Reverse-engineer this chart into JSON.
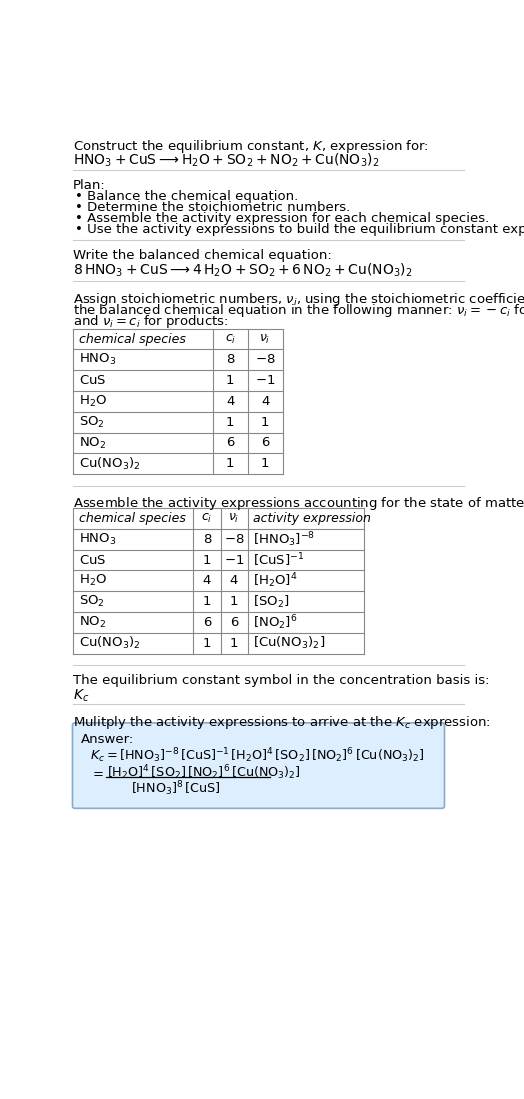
{
  "title_line1": "Construct the equilibrium constant, $K$, expression for:",
  "title_line2": "$\\mathrm{HNO_3 + CuS \\longrightarrow H_2O + SO_2 + NO_2 + Cu(NO_3)_2}$",
  "plan_header": "Plan:",
  "plan_items": [
    "• Balance the chemical equation.",
    "• Determine the stoichiometric numbers.",
    "• Assemble the activity expression for each chemical species.",
    "• Use the activity expressions to build the equilibrium constant expression."
  ],
  "balanced_header": "Write the balanced chemical equation:",
  "balanced_eq": "$\\mathrm{8\\,HNO_3 + CuS \\longrightarrow 4\\,H_2O + SO_2 + 6\\,NO_2 + Cu(NO_3)_2}$",
  "stoich_header_parts": [
    "Assign stoichiometric numbers, $\\nu_i$, using the stoichiometric coefficients, $c_i$, from",
    "the balanced chemical equation in the following manner: $\\nu_i = -c_i$ for reactants",
    "and $\\nu_i = c_i$ for products:"
  ],
  "table1_cols": [
    "chemical species",
    "$c_i$",
    "$\\nu_i$"
  ],
  "table1_rows": [
    [
      "$\\mathrm{HNO_3}$",
      "8",
      "$-8$"
    ],
    [
      "$\\mathrm{CuS}$",
      "1",
      "$-1$"
    ],
    [
      "$\\mathrm{H_2O}$",
      "4",
      "4"
    ],
    [
      "$\\mathrm{SO_2}$",
      "1",
      "1"
    ],
    [
      "$\\mathrm{NO_2}$",
      "6",
      "6"
    ],
    [
      "$\\mathrm{Cu(NO_3)_2}$",
      "1",
      "1"
    ]
  ],
  "activity_header": "Assemble the activity expressions accounting for the state of matter and $\\nu_i$:",
  "table2_cols": [
    "chemical species",
    "$c_i$",
    "$\\nu_i$",
    "activity expression"
  ],
  "table2_rows": [
    [
      "$\\mathrm{HNO_3}$",
      "8",
      "$-8$",
      "$[\\mathrm{HNO_3}]^{-8}$"
    ],
    [
      "$\\mathrm{CuS}$",
      "1",
      "$-1$",
      "$[\\mathrm{CuS}]^{-1}$"
    ],
    [
      "$\\mathrm{H_2O}$",
      "4",
      "4",
      "$[\\mathrm{H_2O}]^{4}$"
    ],
    [
      "$\\mathrm{SO_2}$",
      "1",
      "1",
      "$[\\mathrm{SO_2}]$"
    ],
    [
      "$\\mathrm{NO_2}$",
      "6",
      "6",
      "$[\\mathrm{NO_2}]^{6}$"
    ],
    [
      "$\\mathrm{Cu(NO_3)_2}$",
      "1",
      "1",
      "$[\\mathrm{Cu(NO_3)_2}]$"
    ]
  ],
  "kc_header": "The equilibrium constant symbol in the concentration basis is:",
  "kc_symbol": "$K_c$",
  "multiply_header": "Mulitply the activity expressions to arrive at the $K_c$ expression:",
  "answer_label": "Answer:",
  "answer_line1": "$K_c = [\\mathrm{HNO_3}]^{-8}\\,[\\mathrm{CuS}]^{-1}\\,[\\mathrm{H_2O}]^{4}\\,[\\mathrm{SO_2}]\\,[\\mathrm{NO_2}]^{6}\\,[\\mathrm{Cu(NO_3)_2}]$",
  "answer_eq_sign": "$=$",
  "answer_num": "$[\\mathrm{H_2O}]^4\\,[\\mathrm{SO_2}]\\,[\\mathrm{NO_2}]^6\\,[\\mathrm{Cu(NO_3)_2}]$",
  "answer_den": "$[\\mathrm{HNO_3}]^8\\,[\\mathrm{CuS}]$",
  "bg_color": "#ffffff",
  "answer_box_facecolor": "#ddeeff",
  "answer_box_edgecolor": "#88aacc",
  "table_line_color": "#888888",
  "sep_line_color": "#cccccc",
  "text_color": "#000000",
  "font_size": 9.5
}
